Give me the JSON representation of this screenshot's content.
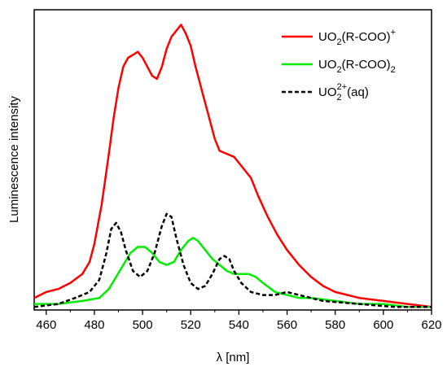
{
  "chart_data": {
    "type": "line",
    "xlabel": "λ [nm]",
    "ylabel": "Luminescence intensity",
    "xlim": [
      455,
      620
    ],
    "ylim": [
      0,
      1.0
    ],
    "x_ticks": [
      460,
      480,
      500,
      520,
      540,
      560,
      580,
      600,
      620
    ],
    "grid": false,
    "legend_position": "top-right",
    "series": [
      {
        "name": "UO2(R-COO)+",
        "legend": {
          "base": "UO",
          "sub": "2",
          "rest": "(R-COO)",
          "sup": "+"
        },
        "color": "#ff0000",
        "style": "solid",
        "points": [
          [
            455,
            0.04
          ],
          [
            460,
            0.06
          ],
          [
            465,
            0.07
          ],
          [
            470,
            0.09
          ],
          [
            475,
            0.12
          ],
          [
            478,
            0.16
          ],
          [
            480,
            0.22
          ],
          [
            483,
            0.35
          ],
          [
            486,
            0.52
          ],
          [
            488,
            0.64
          ],
          [
            490,
            0.74
          ],
          [
            492,
            0.81
          ],
          [
            494,
            0.84
          ],
          [
            496,
            0.85
          ],
          [
            498,
            0.86
          ],
          [
            500,
            0.84
          ],
          [
            502,
            0.81
          ],
          [
            504,
            0.78
          ],
          [
            506,
            0.77
          ],
          [
            508,
            0.81
          ],
          [
            510,
            0.87
          ],
          [
            512,
            0.91
          ],
          [
            514,
            0.93
          ],
          [
            516,
            0.95
          ],
          [
            518,
            0.92
          ],
          [
            520,
            0.88
          ],
          [
            522,
            0.81
          ],
          [
            525,
            0.72
          ],
          [
            528,
            0.63
          ],
          [
            530,
            0.57
          ],
          [
            532,
            0.53
          ],
          [
            535,
            0.52
          ],
          [
            538,
            0.51
          ],
          [
            541,
            0.48
          ],
          [
            545,
            0.44
          ],
          [
            548,
            0.38
          ],
          [
            552,
            0.31
          ],
          [
            556,
            0.25
          ],
          [
            560,
            0.2
          ],
          [
            565,
            0.15
          ],
          [
            570,
            0.11
          ],
          [
            575,
            0.08
          ],
          [
            580,
            0.06
          ],
          [
            590,
            0.04
          ],
          [
            600,
            0.03
          ],
          [
            610,
            0.02
          ],
          [
            620,
            0.01
          ]
        ]
      },
      {
        "name": "UO2(R-COO)2",
        "legend": {
          "base": "UO",
          "sub": "2",
          "rest": "(R-COO)",
          "sub2": "2"
        },
        "color": "#00ee00",
        "style": "solid",
        "points": [
          [
            455,
            0.02
          ],
          [
            465,
            0.02
          ],
          [
            475,
            0.03
          ],
          [
            482,
            0.04
          ],
          [
            486,
            0.07
          ],
          [
            489,
            0.11
          ],
          [
            492,
            0.15
          ],
          [
            495,
            0.19
          ],
          [
            498,
            0.21
          ],
          [
            501,
            0.21
          ],
          [
            504,
            0.19
          ],
          [
            507,
            0.16
          ],
          [
            510,
            0.15
          ],
          [
            513,
            0.16
          ],
          [
            516,
            0.2
          ],
          [
            519,
            0.23
          ],
          [
            521,
            0.24
          ],
          [
            523,
            0.23
          ],
          [
            526,
            0.2
          ],
          [
            529,
            0.17
          ],
          [
            532,
            0.15
          ],
          [
            535,
            0.13
          ],
          [
            538,
            0.12
          ],
          [
            541,
            0.12
          ],
          [
            544,
            0.12
          ],
          [
            547,
            0.11
          ],
          [
            550,
            0.09
          ],
          [
            555,
            0.06
          ],
          [
            560,
            0.05
          ],
          [
            565,
            0.04
          ],
          [
            570,
            0.04
          ],
          [
            580,
            0.03
          ],
          [
            590,
            0.02
          ],
          [
            600,
            0.02
          ],
          [
            610,
            0.01
          ],
          [
            620,
            0.01
          ]
        ]
      },
      {
        "name": "UO2 2+(aq)",
        "legend": {
          "base": "UO",
          "sub": "2",
          "sup": "2+",
          "rest": "(aq)"
        },
        "color": "#000000",
        "style": "dashed",
        "points": [
          [
            455,
            0.01
          ],
          [
            465,
            0.02
          ],
          [
            472,
            0.04
          ],
          [
            478,
            0.06
          ],
          [
            482,
            0.1
          ],
          [
            485,
            0.19
          ],
          [
            487,
            0.27
          ],
          [
            489,
            0.29
          ],
          [
            491,
            0.26
          ],
          [
            493,
            0.2
          ],
          [
            496,
            0.13
          ],
          [
            499,
            0.11
          ],
          [
            502,
            0.13
          ],
          [
            505,
            0.19
          ],
          [
            508,
            0.28
          ],
          [
            510,
            0.32
          ],
          [
            512,
            0.31
          ],
          [
            514,
            0.24
          ],
          [
            517,
            0.15
          ],
          [
            520,
            0.09
          ],
          [
            523,
            0.07
          ],
          [
            526,
            0.08
          ],
          [
            529,
            0.12
          ],
          [
            532,
            0.17
          ],
          [
            534,
            0.18
          ],
          [
            536,
            0.17
          ],
          [
            538,
            0.13
          ],
          [
            541,
            0.09
          ],
          [
            545,
            0.06
          ],
          [
            550,
            0.05
          ],
          [
            555,
            0.05
          ],
          [
            560,
            0.06
          ],
          [
            565,
            0.05
          ],
          [
            575,
            0.03
          ],
          [
            590,
            0.02
          ],
          [
            605,
            0.01
          ],
          [
            620,
            0.01
          ]
        ]
      }
    ]
  }
}
